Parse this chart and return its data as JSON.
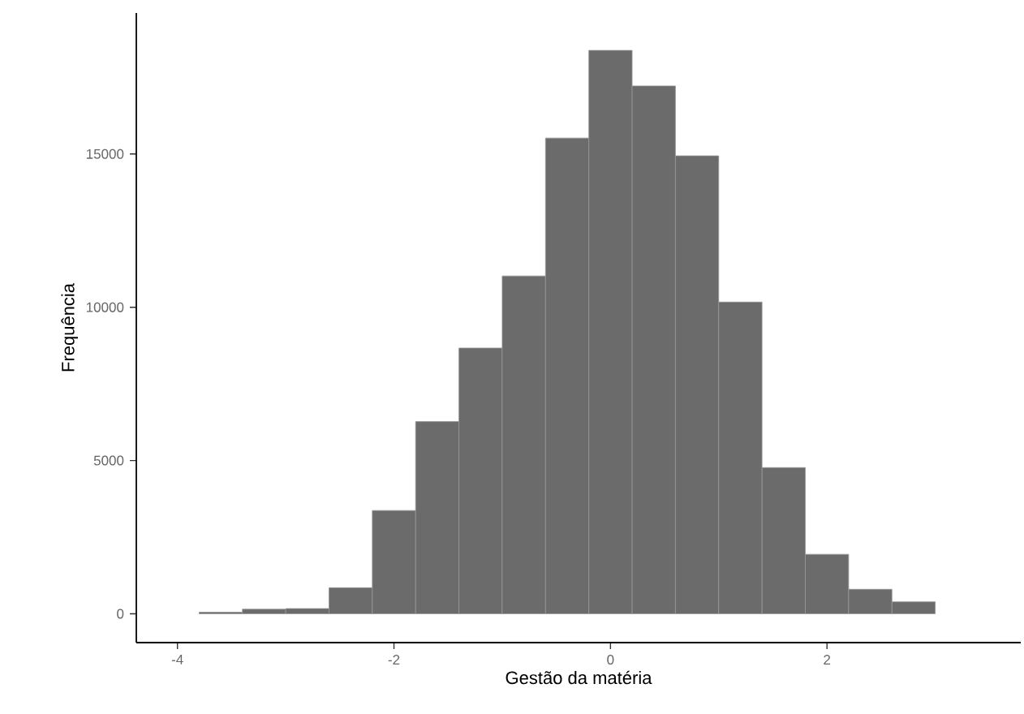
{
  "chart_data": {
    "type": "histogram",
    "xlabel": "Gestão da matéria",
    "ylabel": "Frequência",
    "bins": [
      -3.8,
      -3.4,
      -3.0,
      -2.6,
      -2.2,
      -1.8,
      -1.4,
      -1.0,
      -0.6,
      -0.2,
      0.2,
      0.6,
      1.0,
      1.4,
      1.8,
      2.2,
      2.6,
      3.0
    ],
    "values": [
      50,
      150,
      170,
      850,
      3370,
      6270,
      8670,
      11020,
      15520,
      18380,
      17220,
      14940,
      10170,
      4770,
      1940,
      800,
      390
    ],
    "color": "#6b6b6b",
    "xlim": [
      -4.38,
      3.79
    ],
    "ylim": [
      -940,
      19600
    ],
    "xticks": [
      -4,
      -2,
      0,
      2
    ],
    "yticks": [
      0,
      5000,
      10000,
      15000
    ],
    "grid": false
  }
}
